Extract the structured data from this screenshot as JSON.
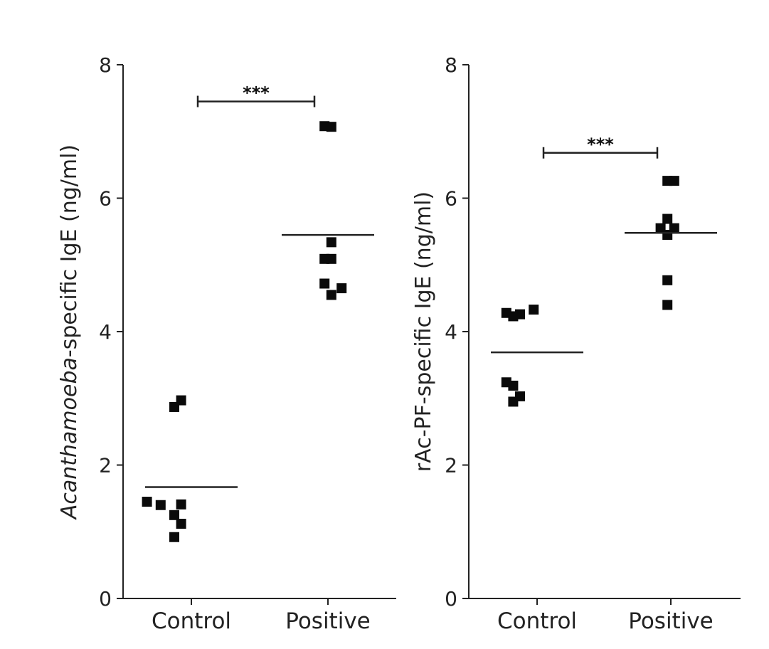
{
  "chart_data": [
    {
      "type": "scatter",
      "ylabel_italic": "Acanthamoeba",
      "ylabel_rest": "-specific IgE (ng/ml)",
      "ylim": [
        0,
        8
      ],
      "yticks": [
        "0",
        "2",
        "4",
        "6",
        "8"
      ],
      "categories": [
        "Control",
        "Positive"
      ],
      "series": [
        {
          "category": "Control",
          "points": [
            {
              "offset": -0.25,
              "y": 2.87
            },
            {
              "offset": -0.15,
              "y": 2.97
            },
            {
              "offset": -0.65,
              "y": 1.45
            },
            {
              "offset": -0.45,
              "y": 1.4
            },
            {
              "offset": -0.25,
              "y": 1.25
            },
            {
              "offset": -0.15,
              "y": 1.41
            },
            {
              "offset": -0.15,
              "y": 1.12
            },
            {
              "offset": -0.25,
              "y": 0.92
            }
          ],
          "mean": 1.67
        },
        {
          "category": "Positive",
          "points": [
            {
              "offset": -0.05,
              "y": 7.08
            },
            {
              "offset": 0.05,
              "y": 7.07
            },
            {
              "offset": 0.05,
              "y": 5.34
            },
            {
              "offset": -0.05,
              "y": 5.09
            },
            {
              "offset": 0.05,
              "y": 5.09
            },
            {
              "offset": -0.05,
              "y": 4.72
            },
            {
              "offset": 0.05,
              "y": 4.55
            },
            {
              "offset": 0.2,
              "y": 4.65
            }
          ],
          "mean": 5.45
        }
      ],
      "significance": {
        "label": "***",
        "y": 7.45
      }
    },
    {
      "type": "scatter",
      "ylabel_italic": "",
      "ylabel_rest": "rAc-PF-specific IgE (ng/ml)",
      "ylim": [
        0,
        8
      ],
      "yticks": [
        "0",
        "2",
        "4",
        "6",
        "8"
      ],
      "categories": [
        "Control",
        "Positive"
      ],
      "series": [
        {
          "category": "Control",
          "points": [
            {
              "offset": -0.45,
              "y": 4.28
            },
            {
              "offset": -0.35,
              "y": 4.23
            },
            {
              "offset": -0.25,
              "y": 4.26
            },
            {
              "offset": -0.05,
              "y": 4.33
            },
            {
              "offset": -0.45,
              "y": 3.24
            },
            {
              "offset": -0.35,
              "y": 3.19
            },
            {
              "offset": -0.25,
              "y": 3.03
            },
            {
              "offset": -0.35,
              "y": 2.95
            }
          ],
          "mean": 3.69
        },
        {
          "category": "Positive",
          "points": [
            {
              "offset": -0.05,
              "y": 6.26
            },
            {
              "offset": 0.05,
              "y": 6.26
            },
            {
              "offset": -0.05,
              "y": 5.69
            },
            {
              "offset": -0.15,
              "y": 5.55
            },
            {
              "offset": 0.05,
              "y": 5.55
            },
            {
              "offset": -0.05,
              "y": 5.45
            },
            {
              "offset": -0.05,
              "y": 4.77
            },
            {
              "offset": -0.05,
              "y": 4.4
            }
          ],
          "mean": 5.48
        }
      ],
      "significance": {
        "label": "***",
        "y": 6.68
      }
    }
  ]
}
